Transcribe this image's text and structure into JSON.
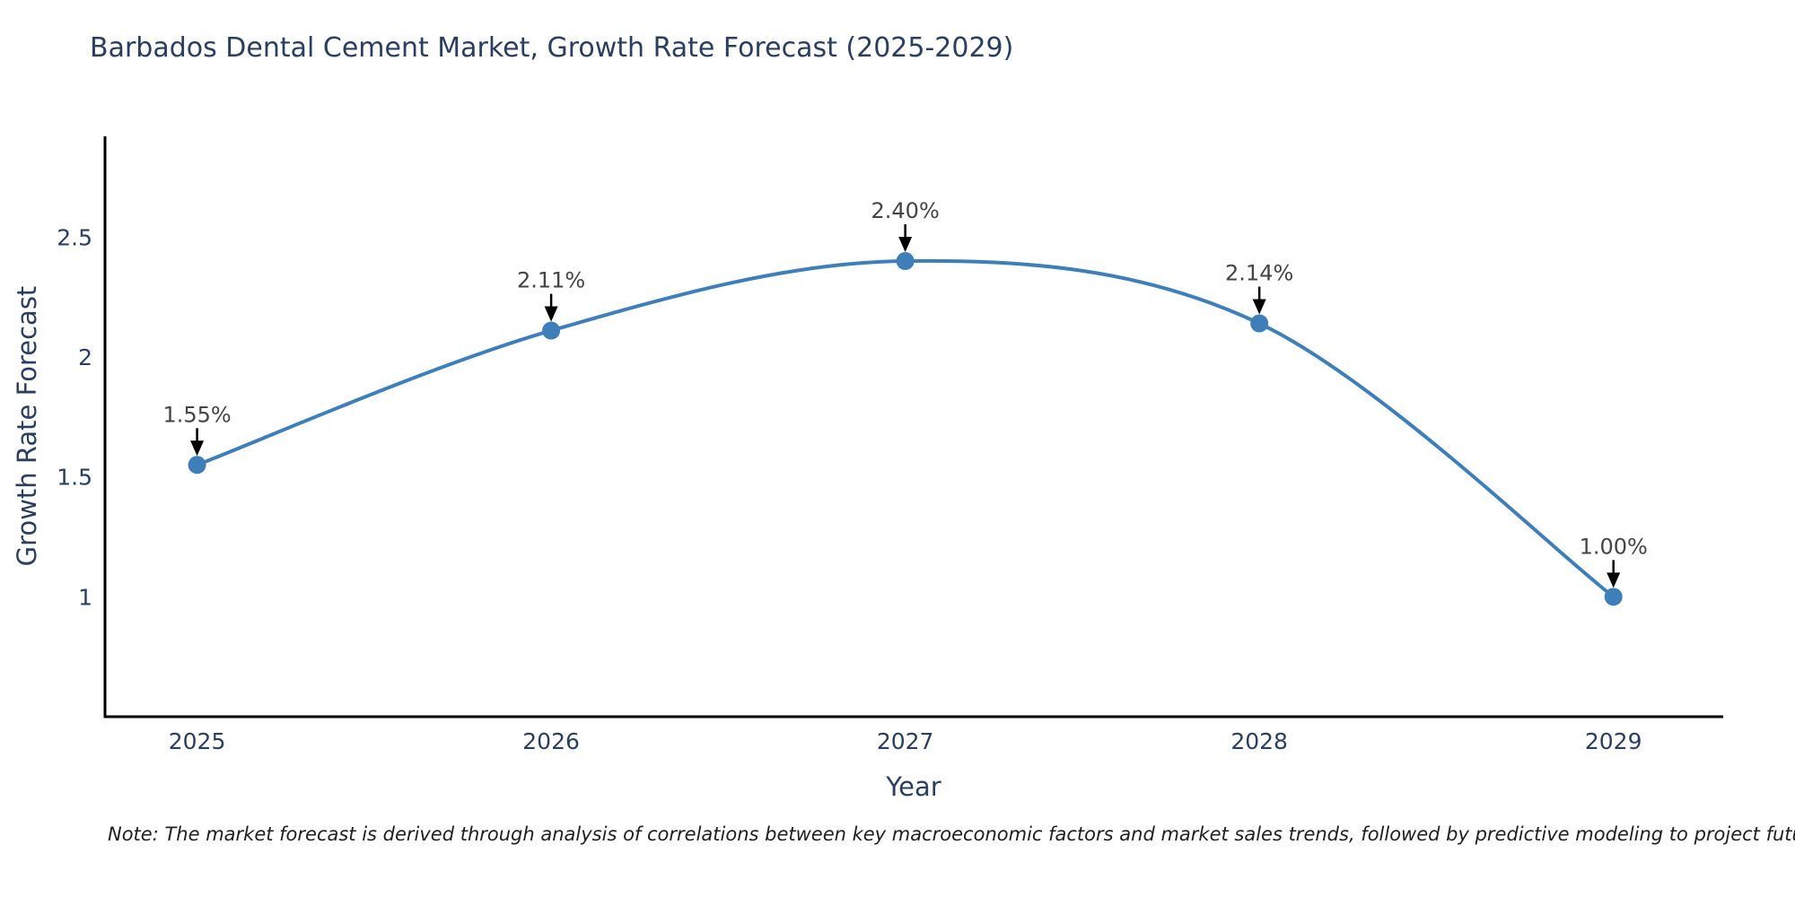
{
  "title": "Barbados Dental Cement Market, Growth Rate Forecast (2025-2029)",
  "note": "Note: The market forecast is derived through analysis of correlations between key macroeconomic factors and market sales trends, followed by predictive modeling to project future sales",
  "colors": {
    "line": "#3e7fba",
    "marker": "#3e7fba",
    "axis": "#000000",
    "tick_text": "#2a3f5f",
    "annotation_text": "#444444",
    "arrow": "#000000"
  },
  "chart_data": {
    "type": "line",
    "title": "Barbados Dental Cement Market, Growth Rate Forecast (2025-2029)",
    "xlabel": "Year",
    "ylabel": "Growth Rate Forecast",
    "x": [
      2025,
      2026,
      2027,
      2028,
      2029
    ],
    "values": [
      1.55,
      2.11,
      2.4,
      2.14,
      1.0
    ],
    "point_labels": [
      "1.55%",
      "2.11%",
      "2.40%",
      "2.14%",
      "1.00%"
    ],
    "x_tick_labels": [
      "2025",
      "2026",
      "2027",
      "2028",
      "2029"
    ],
    "y_ticks": [
      1,
      1.5,
      2,
      2.5
    ],
    "y_tick_labels": [
      "1",
      "1.5",
      "2",
      "2.5"
    ],
    "xlim": [
      2024.74,
      2029.31
    ],
    "ylim": [
      0.5,
      2.92
    ],
    "grid": false,
    "legend": "none",
    "line_style": "spline",
    "annotation_arrows": true
  }
}
